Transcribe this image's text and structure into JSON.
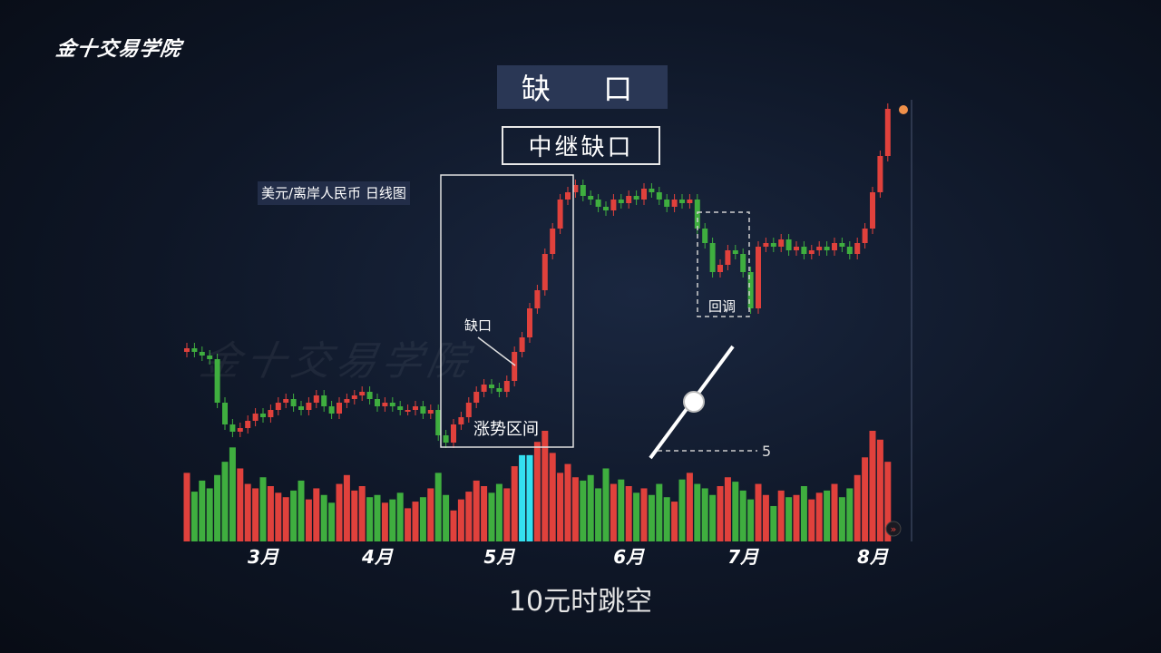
{
  "logo": "金十交易学院",
  "watermark": "金十交易学院",
  "title": "缺 口",
  "subtitle": "中继缺口",
  "pair_label": "美元/离岸人民币  日线图",
  "caption": "10元时跳空",
  "chart_data": {
    "type": "candlestick",
    "title": "美元/离岸人民币  日线图",
    "x_tick_labels": [
      "3月",
      "4月",
      "5月",
      "6月",
      "7月",
      "8月"
    ],
    "x_tick_index": [
      10,
      25,
      41,
      58,
      73,
      90
    ],
    "colors": {
      "up": "#e0413c",
      "down": "#3fae3f",
      "highlight_volume": "#34e0f0"
    },
    "close": [
      29,
      28,
      27,
      26,
      14,
      8,
      6,
      7,
      9,
      11,
      10,
      12,
      14,
      15,
      13,
      12,
      14,
      16,
      13,
      11,
      14,
      15,
      16,
      17,
      15,
      13,
      14,
      13,
      12,
      12,
      13,
      11,
      12,
      5,
      3,
      8,
      10,
      14,
      17,
      19,
      18,
      17,
      20,
      28,
      32,
      40,
      45,
      55,
      62,
      70,
      72,
      74,
      71,
      70,
      68,
      67,
      70,
      69,
      71,
      70,
      73,
      72,
      70,
      68,
      70,
      69,
      70,
      62,
      58,
      50,
      52,
      56,
      55,
      50,
      40,
      57,
      58,
      57,
      59,
      56,
      57,
      55,
      56,
      57,
      56,
      58,
      57,
      55,
      58,
      62,
      72,
      82,
      95
    ],
    "volume": [
      62,
      45,
      55,
      48,
      60,
      72,
      85,
      66,
      52,
      48,
      58,
      50,
      44,
      40,
      46,
      55,
      38,
      48,
      42,
      35,
      52,
      60,
      46,
      50,
      40,
      42,
      35,
      38,
      44,
      30,
      36,
      40,
      48,
      62,
      42,
      28,
      38,
      45,
      55,
      50,
      44,
      52,
      48,
      68,
      78,
      78,
      90,
      100,
      80,
      62,
      70,
      58,
      55,
      60,
      48,
      66,
      52,
      56,
      50,
      44,
      48,
      42,
      52,
      40,
      36,
      56,
      62,
      52,
      48,
      42,
      50,
      58,
      54,
      46,
      38,
      52,
      42,
      32,
      46,
      40,
      42,
      50,
      38,
      44,
      46,
      52,
      40,
      48,
      60,
      76,
      100,
      92,
      72
    ],
    "highlight_volume_index": [
      44,
      45
    ],
    "annotations": {
      "gap": "缺口",
      "uptrend": "涨势区间",
      "pullback": "回调",
      "slider_value": "5"
    }
  }
}
